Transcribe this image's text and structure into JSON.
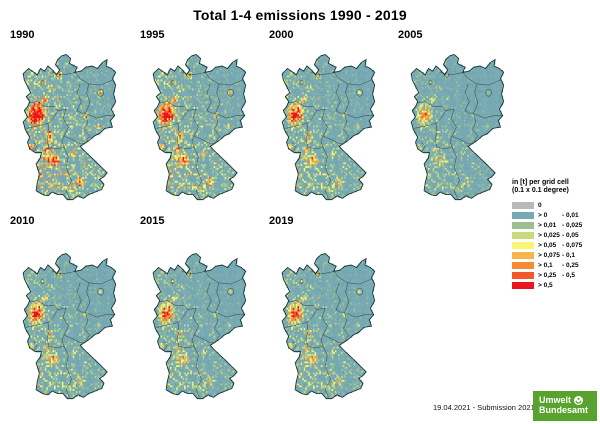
{
  "title": "Total 1-4 emissions 1990 - 2019",
  "maps": {
    "years": [
      "1990",
      "1995",
      "2000",
      "2005",
      "2010",
      "2015",
      "2019"
    ]
  },
  "legend": {
    "title_line1": "in [t] per grid cell",
    "title_line2": "(0.1 x 0.1 degree)",
    "entries": [
      {
        "color": "#b9b9b9",
        "from": "0",
        "to": ""
      },
      {
        "color": "#76a9b2",
        "from": "> 0",
        "to": "- 0,01"
      },
      {
        "color": "#9dbf8e",
        "from": "> 0,01",
        "to": "- 0,025"
      },
      {
        "color": "#c9da7d",
        "from": "> 0,025",
        "to": "- 0,05"
      },
      {
        "color": "#f7f772",
        "from": "> 0,05",
        "to": "- 0,075"
      },
      {
        "color": "#f9b44b",
        "from": "> 0,075",
        "to": "- 0,1"
      },
      {
        "color": "#f98a34",
        "from": "> 0,1",
        "to": "- 0,25"
      },
      {
        "color": "#f1582b",
        "from": "> 0,25",
        "to": "- 0,5"
      },
      {
        "color": "#e9151e",
        "from": "> 0,5",
        "to": ""
      }
    ]
  },
  "footer": {
    "note": "19.04.2021 - Submission 2021"
  },
  "logo": {
    "line1": "Umwelt",
    "line2": "Bundesamt",
    "bg_color": "#57a32e"
  },
  "map_render": {
    "base_color_variants": [
      "#76a9b2",
      "#71a4ad",
      "#7aadb5"
    ],
    "value_colors": [
      "#9dbf8e",
      "#c9da7d",
      "#f7f772",
      "#f9b44b",
      "#f98a34",
      "#f1582b",
      "#e9151e"
    ],
    "thresholds": [
      0.3,
      0.4,
      0.5,
      0.6,
      0.7,
      0.82,
      0.96
    ],
    "year_intensity": [
      1.0,
      0.85,
      0.68,
      0.45,
      0.62,
      0.58,
      0.6
    ],
    "hotspots": [
      [
        17,
        47,
        6.5,
        1.0
      ],
      [
        14,
        53,
        4.5,
        0.9
      ],
      [
        21,
        51,
        3.5,
        0.6
      ],
      [
        28,
        67,
        3.5,
        0.7
      ],
      [
        26,
        77,
        3.0,
        0.68
      ],
      [
        33,
        86,
        4.5,
        0.95
      ],
      [
        24,
        84,
        2.5,
        0.6
      ],
      [
        19,
        97,
        3.0,
        0.6
      ],
      [
        18,
        90,
        2.5,
        0.5
      ],
      [
        57,
        103,
        3.5,
        0.7
      ],
      [
        51,
        81,
        2.5,
        0.55
      ],
      [
        37,
        19,
        2.5,
        0.85
      ],
      [
        22,
        25,
        2.0,
        0.5
      ],
      [
        37,
        38,
        2.0,
        0.5
      ],
      [
        76,
        33,
        2.0,
        0.85
      ],
      [
        62,
        52,
        2.5,
        0.55
      ],
      [
        75,
        60,
        2.0,
        0.5
      ],
      [
        11,
        76,
        2.5,
        0.65
      ],
      [
        24,
        38,
        2.5,
        0.45
      ],
      [
        38,
        54,
        1.5,
        0.4
      ],
      [
        46,
        96,
        2.0,
        0.4
      ],
      [
        62,
        90,
        2.0,
        0.35
      ],
      [
        84,
        94,
        1.5,
        0.35
      ],
      [
        30,
        30,
        2.0,
        0.3
      ]
    ]
  }
}
